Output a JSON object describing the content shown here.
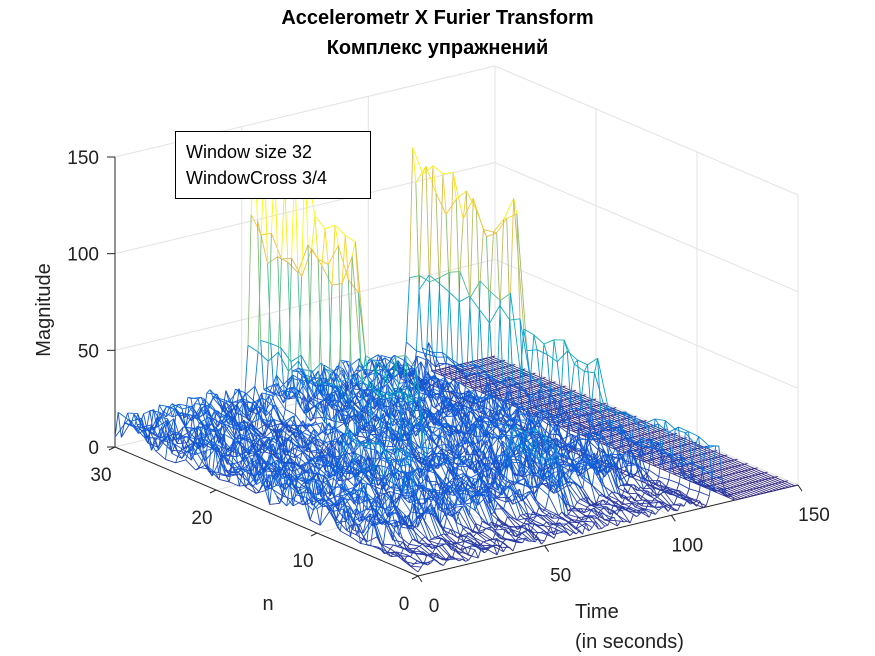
{
  "title": "Accelerometr X Furier Transform",
  "subtitle": "Комплекс упражнений",
  "annotation": [
    "Window size 32",
    "WindowCross 3/4"
  ],
  "chart_data": {
    "type": "surface",
    "render": "wireframe mesh",
    "colormap": "parula",
    "xlabel": [
      "Time",
      "(in seconds)"
    ],
    "ylabel": "n",
    "zlabel": "Magnitude",
    "xlim": [
      0,
      150
    ],
    "ylim": [
      0,
      30
    ],
    "zlim": [
      0,
      150
    ],
    "xticks": [
      0,
      50,
      100,
      150
    ],
    "yticks": [
      0,
      10,
      20,
      30
    ],
    "zticks": [
      0,
      50,
      100,
      150
    ],
    "grid": true,
    "time_samples": 121,
    "bins": 31,
    "baseline_magnitude": 10,
    "peaks": [
      {
        "time": 55,
        "n_min": 20,
        "n_max": 30,
        "magnitude": 145
      },
      {
        "time": 55,
        "n_min": 14,
        "n_max": 19,
        "magnitude": 65
      },
      {
        "time": 118,
        "n_min": 20,
        "n_max": 30,
        "magnitude": 125
      },
      {
        "time": 118,
        "n_min": 12,
        "n_max": 19,
        "magnitude": 55
      },
      {
        "time": 118,
        "n_min": 0,
        "n_max": 11,
        "magnitude": 35
      },
      {
        "time": 70,
        "n_min": 4,
        "n_max": 8,
        "magnitude": 45
      },
      {
        "time": 28,
        "n_min": 8,
        "n_max": 14,
        "magnitude": 40
      }
    ]
  }
}
